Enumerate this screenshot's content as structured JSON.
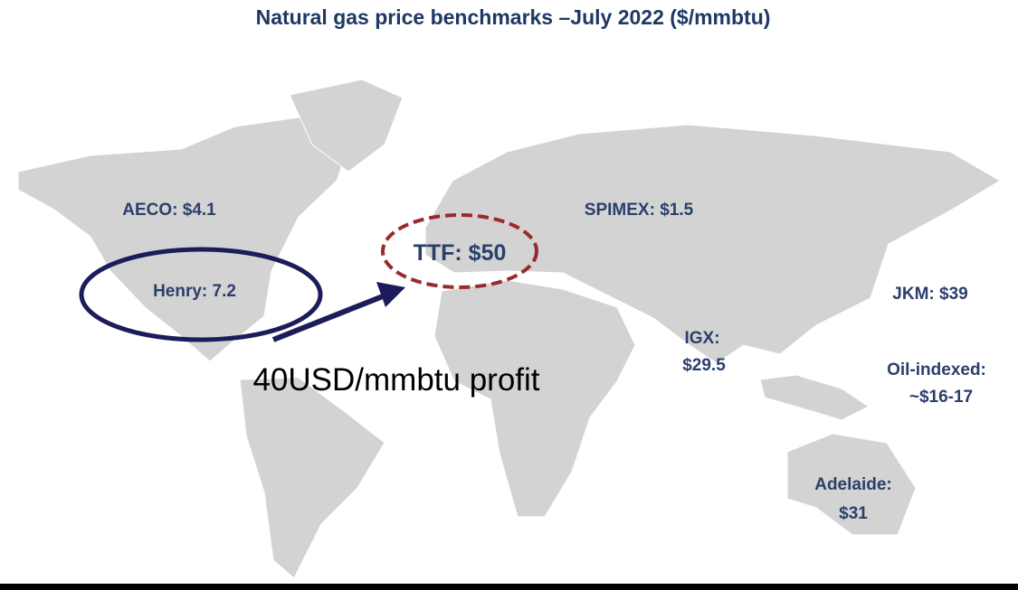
{
  "title": "Natural gas price benchmarks –July 2022 ($/mmbtu)",
  "benchmarks": [
    {
      "lines": [
        "AECO: $4.1"
      ]
    },
    {
      "lines": [
        "Henry: 7.2"
      ]
    },
    {
      "lines": [
        "TTF: $50"
      ]
    },
    {
      "lines": [
        "SPIMEX: $1.5"
      ]
    },
    {
      "lines": [
        "JKM: $39"
      ]
    },
    {
      "lines": [
        "IGX:",
        "$29.5"
      ]
    },
    {
      "lines": [
        "Oil-indexed:",
        "~$16-17"
      ]
    },
    {
      "lines": [
        "Adelaide:",
        "$31"
      ]
    }
  ],
  "annotation": "40USD/mmbtu profit"
}
